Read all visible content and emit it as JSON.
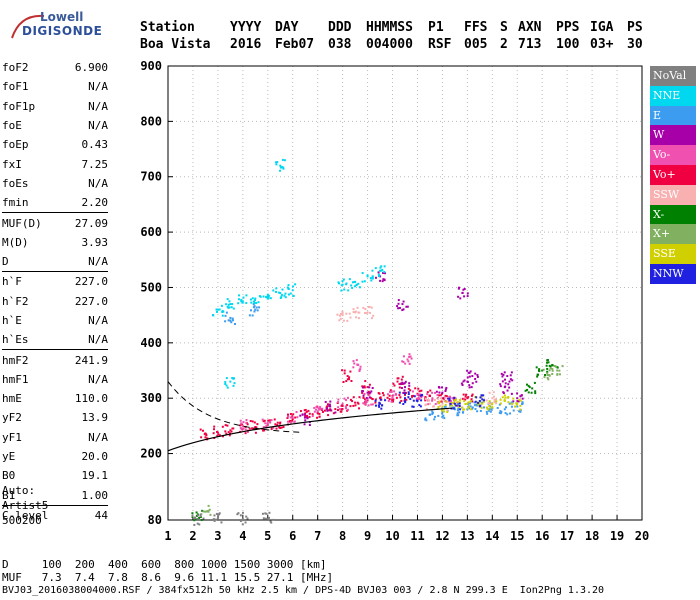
{
  "logo": {
    "line1": "Lowell",
    "line2": "DIGISONDE"
  },
  "header": {
    "labels": [
      "Station",
      "YYYY",
      "DAY",
      "DDD",
      "HHMMSS",
      "P1",
      "FFS",
      "S",
      "AXN",
      "PPS",
      "IGA",
      "PS"
    ],
    "values": [
      "Boa Vista",
      "2016",
      "Feb07",
      "038",
      "004000",
      "RSF",
      "005",
      "2",
      "713",
      "100",
      "03+",
      "30"
    ]
  },
  "params": [
    {
      "name": "foF2",
      "value": "6.900"
    },
    {
      "name": "foF1",
      "value": "N/A"
    },
    {
      "name": "foF1p",
      "value": "N/A"
    },
    {
      "name": "foE",
      "value": "N/A"
    },
    {
      "name": "foEp",
      "value": "0.43"
    },
    {
      "name": "fxI",
      "value": "7.25"
    },
    {
      "name": "foEs",
      "value": "N/A"
    },
    {
      "name": "fmin",
      "value": "2.20"
    },
    {
      "name": "MUF(D)",
      "value": "27.09",
      "sep": true
    },
    {
      "name": "M(D)",
      "value": "3.93"
    },
    {
      "name": "D",
      "value": "N/A"
    },
    {
      "name": "h`F",
      "value": "227.0",
      "sep": true
    },
    {
      "name": "h`F2",
      "value": "227.0"
    },
    {
      "name": "h`E",
      "value": "N/A"
    },
    {
      "name": "h`Es",
      "value": "N/A"
    },
    {
      "name": "hmF2",
      "value": "241.9",
      "sep": true
    },
    {
      "name": "hmF1",
      "value": "N/A"
    },
    {
      "name": "hmE",
      "value": "110.0"
    },
    {
      "name": "yF2",
      "value": "13.9"
    },
    {
      "name": "yF1",
      "value": "N/A"
    },
    {
      "name": "yE",
      "value": "20.0"
    },
    {
      "name": "B0",
      "value": "19.1"
    },
    {
      "name": "B1",
      "value": "1.00"
    },
    {
      "name": "C-level",
      "value": "44",
      "sep": true
    }
  ],
  "auto": {
    "line1": "Auto:",
    "line2": "Artist5",
    "line3": "500200"
  },
  "legend": [
    {
      "label": "NoVal",
      "color": "#808080"
    },
    {
      "label": "NNE",
      "color": "#00d8f0"
    },
    {
      "label": "E",
      "color": "#3c9cf0"
    },
    {
      "label": "W",
      "color": "#a800a8"
    },
    {
      "label": "Vo-",
      "color": "#f050b0"
    },
    {
      "label": "Vo+",
      "color": "#f00040"
    },
    {
      "label": "SSW",
      "color": "#f8b0b0"
    },
    {
      "label": "X-",
      "color": "#008000"
    },
    {
      "label": "X+",
      "color": "#80b060"
    },
    {
      "label": "SSE",
      "color": "#d0d000"
    },
    {
      "label": "NNW",
      "color": "#2020e0"
    }
  ],
  "bottom": {
    "d_label": "D",
    "d_values": "100  200  400  600  800 1000 1500 3000 [km]",
    "muf_label": "MUF",
    "muf_values": "7.3  7.4  7.8  8.6  9.6 11.1 15.5 27.1 [MHz]",
    "footer": "BVJ03_2016038004000.RSF / 384fx512h 50 kHz 2.5 km / DPS-4D BVJ03 003 / 2.8 N 299.3 E  Ion2Png 1.3.20"
  },
  "chart_data": {
    "type": "scatter",
    "xlim": [
      1,
      20
    ],
    "ylim": [
      80,
      900
    ],
    "x_ticks": [
      1,
      2,
      3,
      4,
      5,
      6,
      7,
      8,
      9,
      10,
      11,
      12,
      13,
      14,
      15,
      16,
      17,
      18,
      19,
      20
    ],
    "y_ticks": [
      80,
      200,
      300,
      400,
      500,
      600,
      700,
      800,
      900
    ],
    "grid": true,
    "series": [
      {
        "name": "Vo+",
        "color": "#f00040",
        "points": [
          [
            2.5,
            235
          ],
          [
            3,
            238
          ],
          [
            3.5,
            242
          ],
          [
            4,
            245
          ],
          [
            4.5,
            248
          ],
          [
            5,
            252
          ],
          [
            5.5,
            256
          ],
          [
            6,
            262
          ],
          [
            6.5,
            268
          ],
          [
            7,
            274
          ],
          [
            7.5,
            280
          ],
          [
            8,
            286
          ],
          [
            8.5,
            292
          ],
          [
            9,
            296
          ],
          [
            9.5,
            300
          ],
          [
            10,
            304
          ],
          [
            10.5,
            306
          ],
          [
            11,
            308
          ],
          [
            11.5,
            304
          ],
          [
            12,
            300
          ],
          [
            12.5,
            296
          ],
          [
            13,
            300
          ],
          [
            8.2,
            340
          ],
          [
            9,
            320
          ],
          [
            10.2,
            330
          ]
        ]
      },
      {
        "name": "Vo-",
        "color": "#f050b0",
        "points": [
          [
            4,
            250
          ],
          [
            5,
            255
          ],
          [
            6,
            265
          ],
          [
            7,
            276
          ],
          [
            8,
            290
          ],
          [
            8.6,
            360
          ],
          [
            9,
            298
          ],
          [
            10,
            302
          ],
          [
            10.6,
            370
          ],
          [
            11,
            306
          ],
          [
            11.6,
            300
          ],
          [
            12.4,
            300
          ]
        ]
      },
      {
        "name": "W",
        "color": "#a800a8",
        "points": [
          [
            6.5,
            260
          ],
          [
            7.5,
            285
          ],
          [
            9,
            310
          ],
          [
            10.5,
            320
          ],
          [
            12,
            310
          ],
          [
            13,
            330
          ],
          [
            13.2,
            340
          ],
          [
            14.5,
            320
          ],
          [
            14.6,
            340
          ],
          [
            15,
            300
          ],
          [
            9.5,
            520
          ],
          [
            10.4,
            470
          ],
          [
            12.8,
            490
          ]
        ]
      },
      {
        "name": "E",
        "color": "#3c9cf0",
        "points": [
          [
            11.5,
            270
          ],
          [
            12,
            275
          ],
          [
            12.5,
            280
          ],
          [
            13,
            280
          ],
          [
            13.5,
            285
          ],
          [
            14,
            282
          ],
          [
            14.5,
            280
          ],
          [
            15,
            285
          ],
          [
            3.5,
            445
          ],
          [
            4.5,
            460
          ]
        ]
      },
      {
        "name": "NNE",
        "color": "#00d8f0",
        "points": [
          [
            3,
            460
          ],
          [
            3.5,
            470
          ],
          [
            4,
            475
          ],
          [
            4.5,
            480
          ],
          [
            5,
            485
          ],
          [
            5.5,
            490
          ],
          [
            6,
            495
          ],
          [
            8,
            505
          ],
          [
            8.5,
            510
          ],
          [
            9,
            520
          ],
          [
            9.5,
            530
          ],
          [
            3.5,
            330
          ],
          [
            5.5,
            720
          ]
        ]
      },
      {
        "name": "SSW",
        "color": "#f8b0b0",
        "points": [
          [
            8,
            450
          ],
          [
            8.5,
            455
          ],
          [
            9,
            455
          ],
          [
            11.5,
            290
          ],
          [
            12,
            290
          ],
          [
            14,
            300
          ]
        ]
      },
      {
        "name": "SSE",
        "color": "#d0d000",
        "points": [
          [
            12,
            285
          ],
          [
            12.5,
            288
          ],
          [
            13,
            290
          ],
          [
            13.5,
            292
          ],
          [
            14,
            290
          ],
          [
            14.5,
            295
          ],
          [
            15,
            290
          ]
        ]
      },
      {
        "name": "X-",
        "color": "#008000",
        "points": [
          [
            16,
            350
          ],
          [
            16.4,
            360
          ],
          [
            15.5,
            320
          ],
          [
            2.2,
            90
          ]
        ]
      },
      {
        "name": "X+",
        "color": "#80b060",
        "points": [
          [
            16.2,
            345
          ],
          [
            16.6,
            350
          ],
          [
            2.5,
            95
          ]
        ]
      },
      {
        "name": "NNW",
        "color": "#2020e0",
        "points": [
          [
            9.5,
            290
          ],
          [
            10.5,
            300
          ],
          [
            11,
            295
          ],
          [
            12.5,
            290
          ],
          [
            13.5,
            295
          ]
        ]
      },
      {
        "name": "NoVal",
        "color": "#808080",
        "points": [
          [
            2.2,
            82
          ],
          [
            3,
            82
          ],
          [
            4,
            82
          ],
          [
            5,
            82
          ]
        ]
      }
    ]
  }
}
